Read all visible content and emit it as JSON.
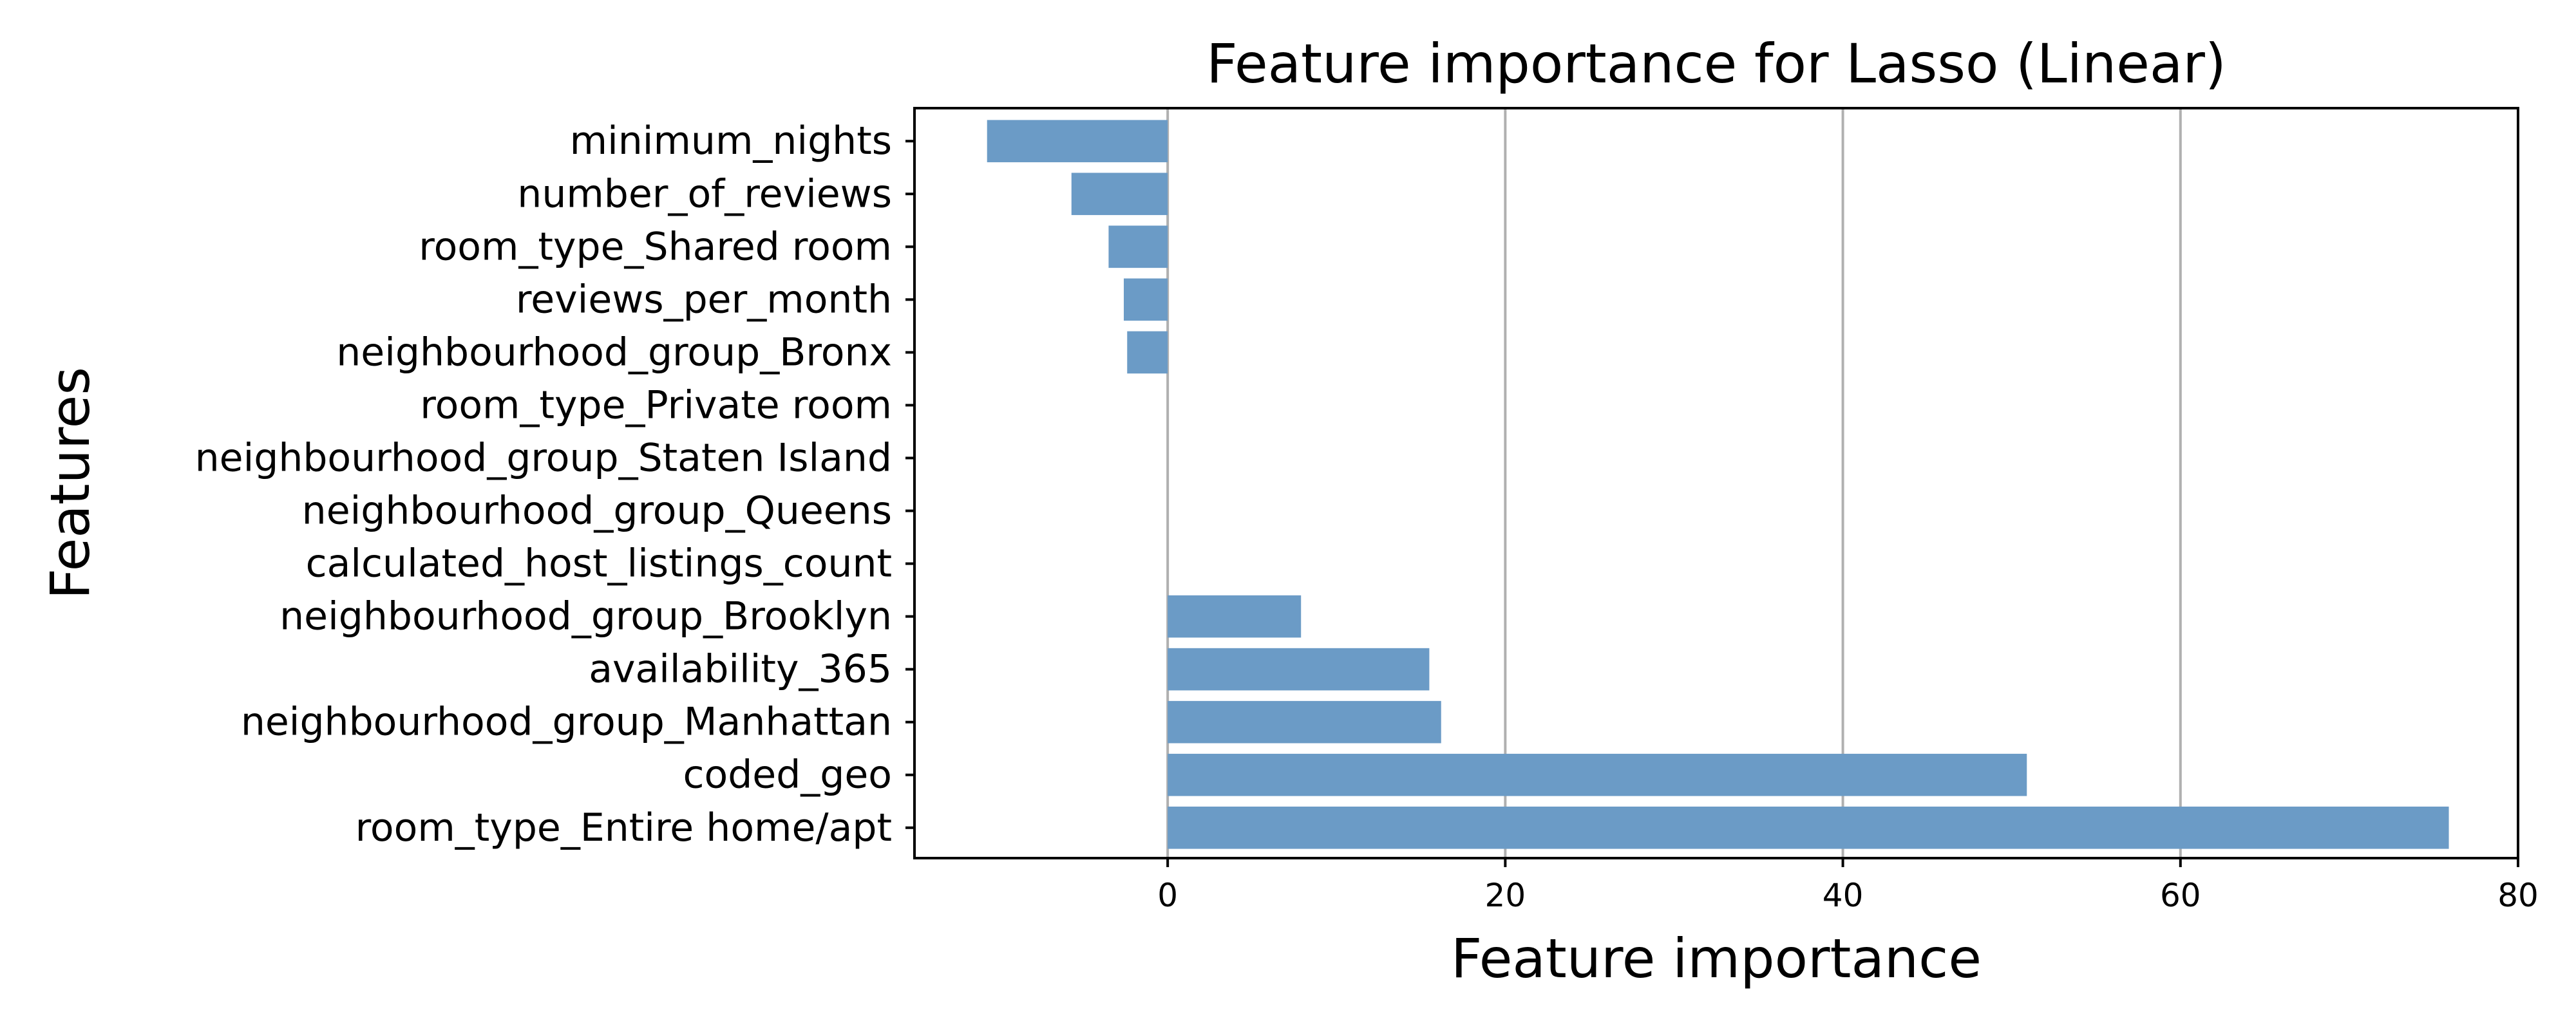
{
  "chart_data": {
    "type": "bar",
    "orientation": "horizontal",
    "title": "Feature importance for Lasso (Linear)",
    "xlabel": "Feature importance",
    "ylabel": "Features",
    "categories": [
      "minimum_nights",
      "number_of_reviews",
      "room_type_Shared room",
      "reviews_per_month",
      "neighbourhood_group_Bronx",
      "room_type_Private room",
      "neighbourhood_group_Staten Island",
      "neighbourhood_group_Queens",
      "calculated_host_listings_count",
      "neighbourhood_group_Brooklyn",
      "availability_365",
      "neighbourhood_group_Manhattan",
      "coded_geo",
      "room_type_Entire home/apt"
    ],
    "values": [
      -10.7,
      -5.7,
      -3.5,
      -2.6,
      -2.4,
      0,
      0,
      0,
      0,
      7.9,
      15.5,
      16.2,
      50.9,
      75.9
    ],
    "xlim": [
      -15,
      80
    ],
    "xticks": [
      0,
      20,
      40,
      60,
      80
    ],
    "grid": "vertical",
    "bar_color": "#6b9bc6",
    "grid_color": "#b0b0b0"
  }
}
